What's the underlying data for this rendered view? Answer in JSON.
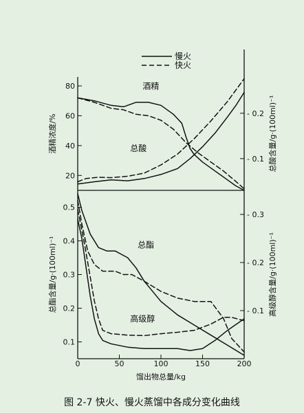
{
  "colors": {
    "background": "#e4f1e2",
    "ink": "#111111"
  },
  "caption": "图 2-7   快火、慢火蒸馏中各成分变化曲线",
  "chart_data": {
    "type": "line",
    "legend": {
      "position": "top",
      "entries": [
        {
          "name": "慢火",
          "style": "solid"
        },
        {
          "name": "快火",
          "style": "dashed"
        }
      ]
    },
    "xlabel": "馏出物总量/kg",
    "xlim": [
      0,
      200
    ],
    "xticks": [
      "0",
      "50",
      "100",
      "150",
      "200"
    ],
    "panels": [
      {
        "id": "top",
        "left_axis": {
          "label": "酒精浓度/%",
          "ylim": [
            10,
            86
          ],
          "ticks": [
            {
              "value": 20,
              "label": "20"
            },
            {
              "value": 40,
              "label": "40"
            },
            {
              "value": 60,
              "label": "60"
            },
            {
              "value": 80,
              "label": "80"
            }
          ]
        },
        "right_axis": {
          "label": "总酸含量/g·(100ml)⁻¹",
          "ylim": [
            0.03,
            0.28
          ],
          "ticks": [
            {
              "value": 0.1,
              "label": "0.1"
            },
            {
              "value": 0.2,
              "label": "0.2"
            }
          ]
        },
        "annotations": [
          {
            "text": "酒精",
            "x": 78,
            "y": 78,
            "axis": "left"
          },
          {
            "text": "总酸",
            "x": 63,
            "y": 0.116,
            "axis": "right"
          }
        ],
        "series": [
          {
            "name": "酒精",
            "style": "solid",
            "axis": "left",
            "x": [
              0,
              20,
              40,
              55,
              70,
              85,
              100,
              115,
              125,
              130,
              135,
              140,
              150,
              165,
              180,
              190,
              200
            ],
            "y": [
              72,
              70,
              67,
              66,
              69,
              69,
              67,
              61,
              55,
              46,
              38,
              34,
              29,
              23,
              17,
              13,
              10
            ]
          },
          {
            "name": "酒精",
            "style": "dashed",
            "axis": "left",
            "x": [
              0,
              20,
              40,
              55,
              70,
              85,
              100,
              115,
              130,
              145,
              160,
              175,
              190,
              200
            ],
            "y": [
              72,
              69,
              65,
              64,
              61,
              60,
              57,
              51,
              42,
              35,
              29,
              23,
              16,
              11
            ]
          },
          {
            "name": "总酸",
            "style": "solid",
            "axis": "right",
            "x": [
              0,
              20,
              40,
              60,
              80,
              100,
              120,
              135,
              150,
              165,
              180,
              190,
              200
            ],
            "y": [
              0.044,
              0.049,
              0.053,
              0.051,
              0.056,
              0.065,
              0.078,
              0.1,
              0.126,
              0.156,
              0.192,
              0.217,
              0.246
            ]
          },
          {
            "name": "总酸",
            "style": "dashed",
            "axis": "right",
            "x": [
              0,
              10,
              25,
              40,
              60,
              80,
              100,
              120,
              140,
              160,
              180,
              200
            ],
            "y": [
              0.049,
              0.056,
              0.059,
              0.058,
              0.061,
              0.068,
              0.086,
              0.11,
              0.144,
              0.183,
              0.226,
              0.276
            ]
          }
        ]
      },
      {
        "id": "bottom",
        "left_axis": {
          "label": "总酯含量/g·(100ml)⁻¹",
          "ylim": [
            0.05,
            0.55
          ],
          "ticks": [
            {
              "value": 0.1,
              "label": "0.1"
            },
            {
              "value": 0.2,
              "label": "0.2"
            },
            {
              "value": 0.3,
              "label": "0.3"
            },
            {
              "value": 0.4,
              "label": "0.4"
            },
            {
              "value": 0.5,
              "label": "0.5"
            }
          ]
        },
        "right_axis": {
          "label": "高级醇含量/g·(100ml)⁻¹",
          "ylim": [
            0,
            0.35
          ],
          "ticks": [
            {
              "value": 0.1,
              "label": "0.1"
            },
            {
              "value": 0.2,
              "label": "0.2"
            },
            {
              "value": 0.3,
              "label": "0.3"
            }
          ]
        },
        "annotations": [
          {
            "text": "总酯",
            "x": 72,
            "y": 0.38,
            "axis": "left"
          },
          {
            "text": "高级醇",
            "x": 63,
            "y": 0.16,
            "axis": "left"
          }
        ],
        "series": [
          {
            "name": "总酯",
            "style": "solid",
            "axis": "left",
            "x": [
              0,
              5,
              15,
              25,
              35,
              45,
              60,
              70,
              80,
              100,
              120,
              140,
              160,
              180,
              200
            ],
            "y": [
              0.54,
              0.49,
              0.42,
              0.38,
              0.37,
              0.37,
              0.35,
              0.32,
              0.28,
              0.22,
              0.18,
              0.15,
              0.12,
              0.09,
              0.06
            ]
          },
          {
            "name": "总酯",
            "style": "dashed",
            "axis": "left",
            "x": [
              0,
              5,
              12,
              20,
              30,
              45,
              55,
              65,
              80,
              100,
              120,
              140,
              160,
              175,
              185,
              200
            ],
            "y": [
              0.52,
              0.45,
              0.37,
              0.33,
              0.31,
              0.31,
              0.3,
              0.3,
              0.28,
              0.25,
              0.23,
              0.22,
              0.22,
              0.17,
              0.11,
              0.07
            ]
          },
          {
            "name": "高级醇",
            "style": "solid",
            "axis": "right",
            "x": [
              0,
              5,
              10,
              15,
              20,
              25,
              30,
              40,
              60,
              80,
              100,
              120,
              135,
              150,
              165,
              180,
              200
            ],
            "y": [
              0.29,
              0.25,
              0.19,
              0.13,
              0.083,
              0.052,
              0.038,
              0.031,
              0.024,
              0.021,
              0.021,
              0.021,
              0.017,
              0.021,
              0.038,
              0.059,
              0.083
            ]
          },
          {
            "name": "高级醇",
            "style": "dashed",
            "axis": "right",
            "x": [
              0,
              8,
              15,
              20,
              25,
              30,
              40,
              60,
              80,
              100,
              120,
              140,
              160,
              175,
              185,
              200
            ],
            "y": [
              0.31,
              0.24,
              0.17,
              0.12,
              0.083,
              0.059,
              0.052,
              0.049,
              0.048,
              0.052,
              0.055,
              0.059,
              0.072,
              0.086,
              0.086,
              0.079
            ]
          }
        ]
      }
    ]
  }
}
